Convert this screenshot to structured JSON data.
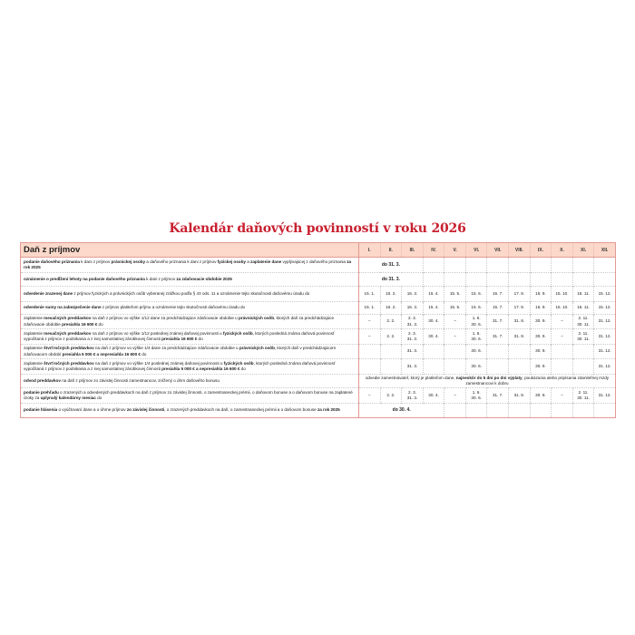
{
  "title": "Kalendár daňových povinností v roku 2026",
  "colors": {
    "title": "#c8202f",
    "header_bg": "#fbd8c9",
    "border": "#e39a94"
  },
  "table": {
    "section_header": "Daň z príjmov",
    "months": [
      "I.",
      "II.",
      "III.",
      "IV.",
      "V.",
      "VI.",
      "VII.",
      "VIII.",
      "IX.",
      "X.",
      "XI.",
      "XII."
    ],
    "rows": [
      {
        "desc": [
          {
            "t": "podanie daňového priznania",
            "b": true
          },
          {
            "t": " k dani z príjmov "
          },
          {
            "t": "právnickej osoby",
            "b": true
          },
          {
            "t": " a daňového priznania k dani z príjmov "
          },
          {
            "t": "fyzickej osoby",
            "b": true
          },
          {
            "t": " a "
          },
          {
            "t": "zaplatenie dane",
            "b": true
          },
          {
            "t": " vyplývajúcej z daňového priznania "
          },
          {
            "t": "za rok 2025",
            "b": true
          }
        ],
        "span": {
          "text": "do 31. 3.",
          "cols": 3
        }
      },
      {
        "desc": [
          {
            "t": "oznámenie o predĺžení lehoty na podanie daňového priznania",
            "b": true
          },
          {
            "t": " k dani z príjmov "
          },
          {
            "t": "za zdaňovacie obdobie 2025",
            "b": true
          }
        ],
        "span": {
          "text": "do 31. 3.",
          "cols": 3
        }
      },
      {
        "desc": [
          {
            "t": "odvedenie zrazenej dane",
            "b": true
          },
          {
            "t": " z príjmov fyzických a právnických osôb vyberanej zrážkou podľa § 43 ods. 11 a oznámenie tejto skutočnosti daňovému úradu do"
          }
        ],
        "values": [
          "15. 1.",
          "16. 2.",
          "16. 3.",
          "15. 4.",
          "15. 5.",
          "15. 6.",
          "15. 7.",
          "17. 8.",
          "16. 9.",
          "15. 10.",
          "16. 11.",
          "15. 12."
        ]
      },
      {
        "desc": [
          {
            "t": "odvedenie sumy na zabezpečenie dane",
            "b": true
          },
          {
            "t": " z príjmov platiteľom príjmu a oznámenie tejto skutočnosti daňovému úradu do"
          }
        ],
        "values": [
          "15. 1.",
          "16. 2.",
          "16. 3.",
          "15. 4.",
          "15. 5.",
          "15. 6.",
          "15. 7.",
          "17. 8.",
          "16. 9.",
          "15. 10.",
          "16. 11.",
          "15. 12."
        ]
      },
      {
        "desc": [
          {
            "t": "zaplatenie "
          },
          {
            "t": "mesačných preddavkov",
            "b": true
          },
          {
            "t": " na daň z príjmov vo výške 1/12 dane za predchádzajúce zdaňovacie obdobie u "
          },
          {
            "t": "právnických osôb",
            "b": true
          },
          {
            "t": ", ktorých daň za predchádzajúce zdaňovacie obdobie "
          },
          {
            "t": "presiahla 16 600 €",
            "b": true
          },
          {
            "t": " do"
          }
        ],
        "values": [
          "–",
          "2. 2.",
          "2. 3.\n31. 3.",
          "30. 4.",
          "–",
          "1. 6.\n30. 6.",
          "31. 7.",
          "31. 8.",
          "30. 9.",
          "–",
          "2. 11.\n30. 11.",
          "31. 12."
        ]
      },
      {
        "desc": [
          {
            "t": "zaplatenie "
          },
          {
            "t": "mesačných preddavkov",
            "b": true
          },
          {
            "t": " na daň z príjmov vo výške 1/12 poslednej známej daňovej povinnosti u "
          },
          {
            "t": "fyzických osôb",
            "b": true
          },
          {
            "t": ", ktorých posledná známa daňová povinnosť vypočítaná z príjmov z podnikania a z inej samostatnej zárobkovej činnosti "
          },
          {
            "t": "presiahla 16 600 €",
            "b": true
          },
          {
            "t": " do"
          }
        ],
        "values": [
          "–",
          "2. 2.",
          "2. 3.\n31. 3.",
          "30. 4.",
          "–",
          "1. 6.\n30. 6.",
          "31. 7.",
          "31. 8.",
          "30. 9.",
          "–",
          "2. 11.\n30. 11.",
          "31. 12."
        ]
      },
      {
        "desc": [
          {
            "t": "zaplatenie "
          },
          {
            "t": "štvrťročných preddavkov",
            "b": true
          },
          {
            "t": " na daň z príjmov vo výške 1/4 dane za predchádzajúce zdaňovacie obdobie u "
          },
          {
            "t": "právnických osôb",
            "b": true
          },
          {
            "t": ", ktorých daň v predchádzajúcom zdaňovacom období "
          },
          {
            "t": "presiahla 5 000 € a nepresiahla 16 600 €",
            "b": true
          },
          {
            "t": " do"
          }
        ],
        "values": [
          "",
          "",
          "31. 3.",
          "",
          "",
          "30. 6.",
          "",
          "",
          "30. 9.",
          "",
          "",
          "31. 12."
        ]
      },
      {
        "desc": [
          {
            "t": "zaplatenie "
          },
          {
            "t": "štvrťročných preddavkov",
            "b": true
          },
          {
            "t": " na daň z príjmov vo výške 1/4 poslednej známej daňovej povinnosti u "
          },
          {
            "t": "fyzických osôb",
            "b": true
          },
          {
            "t": ", ktorých posledná známa daňová povinnosť vypočítaná z príjmov z podnikania a z inej samostatnej zárobkovej činnosti "
          },
          {
            "t": "presiahla 5 000 € a nepresiahla 16 600 €",
            "b": true
          },
          {
            "t": " do"
          }
        ],
        "values": [
          "",
          "",
          "31. 3.",
          "",
          "",
          "30. 6.",
          "",
          "",
          "30. 9.",
          "",
          "",
          "31. 12."
        ]
      },
      {
        "desc": [
          {
            "t": "odvod preddavkov",
            "b": true
          },
          {
            "t": " na daň z príjmov zo závislej činnosti zamestnancov, znížený o úhrn daňového bonusu"
          }
        ],
        "span": {
          "cols": 12,
          "note": true,
          "rich": [
            {
              "t": "odvedie zamestnávateľ, ktorý je platiteľom dane, "
            },
            {
              "t": "najneskôr do 5 dní po dni výplaty",
              "b": true
            },
            {
              "t": ", poukázania alebo pripísania zdaniteľnej mzdy zamestnancovi k dobru"
            }
          ]
        }
      },
      {
        "desc": [
          {
            "t": "podanie prehľadu",
            "b": true
          },
          {
            "t": " o zrazených a odvedených preddavkoch na daň z príjmov zo závislej činnosti, o zamestnaneckej prémii, o daňovom bonuse a o daňovom bonuse na zaplatené úroky za "
          },
          {
            "t": "uplynulý kalendárny mesiac",
            "b": true
          },
          {
            "t": " do"
          }
        ],
        "values": [
          "–",
          "2. 2.",
          "2. 3.\n31. 3.",
          "30. 4.",
          "–",
          "1. 6.\n30. 6.",
          "31. 7.",
          "31. 8.",
          "30. 9.",
          "–",
          "2. 11.\n30. 11.",
          "31. 12."
        ]
      },
      {
        "desc": [
          {
            "t": "podanie hlásenia",
            "b": true
          },
          {
            "t": " o vyúčtovaní dane a o úhrne príjmov "
          },
          {
            "t": "zo závislej činnosti",
            "b": true
          },
          {
            "t": ", o zrazených preddavkoch na daň, o zamestnaneckej prémii a o daňovom bonuse "
          },
          {
            "t": "za rok 2025",
            "b": true
          }
        ],
        "span": {
          "text": "do 30. 4.",
          "cols": 4
        }
      }
    ]
  }
}
